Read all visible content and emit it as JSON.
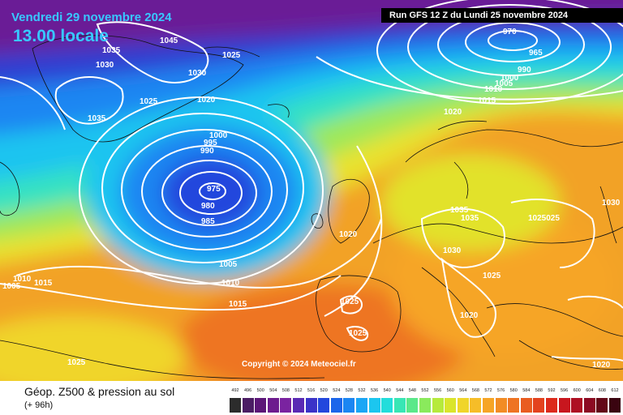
{
  "header": {
    "date_line": "Vendredi 29 novembre 2024",
    "time_line": "13.00 locale",
    "run_info": "Run GFS 12 Z du Lundi 25 novembre 2024"
  },
  "footer": {
    "product_title": "Géop. Z500 & pression au sol",
    "lead_time": "(+ 96h)",
    "copyright": "Copyright © 2024 Meteociel.fr"
  },
  "isobar_labels": [
    "1045",
    "1035",
    "1030",
    "1030",
    "1025",
    "1025",
    "1020",
    "1035",
    "970",
    "965",
    "990",
    "1000",
    "1005",
    "1010",
    "1015",
    "1020",
    "1000",
    "995",
    "990",
    "975",
    "980",
    "985",
    "1005",
    "1010",
    "1015",
    "1005",
    "1010",
    "1015",
    "1020",
    "1025",
    "1025",
    "1035",
    "1035",
    "1030",
    "1025",
    "1025025",
    "1030",
    "1020",
    "1025",
    "1020"
  ],
  "color_scale": {
    "labels": [
      "492",
      "496",
      "500",
      "504",
      "508",
      "512",
      "516",
      "520",
      "524",
      "528",
      "532",
      "536",
      "540",
      "544",
      "548",
      "552",
      "556",
      "560",
      "564",
      "568",
      "572",
      "576",
      "580",
      "584",
      "588",
      "592",
      "596",
      "600",
      "604",
      "608",
      "612"
    ],
    "colors": [
      "#2c2c2c",
      "#4b1d64",
      "#5c1678",
      "#6d1b8e",
      "#7a23a0",
      "#5a2ab4",
      "#3b33c8",
      "#2347dd",
      "#1c66ea",
      "#1c86f2",
      "#1aa6f5",
      "#1cc6ef",
      "#22dddb",
      "#38e6b5",
      "#5ae88a",
      "#8aea5c",
      "#b6ea3c",
      "#dae52c",
      "#f0d52a",
      "#f6bd28",
      "#f6a526",
      "#f28c24",
      "#ee7422",
      "#e95c20",
      "#e3421e",
      "#dc2a1c",
      "#c8161e",
      "#ae0f22",
      "#8c0a22",
      "#640818",
      "#3a0410"
    ]
  },
  "colors": {
    "title_accent": "#38c8ff",
    "isobar": "#ffffff",
    "background": "#ffffff"
  }
}
